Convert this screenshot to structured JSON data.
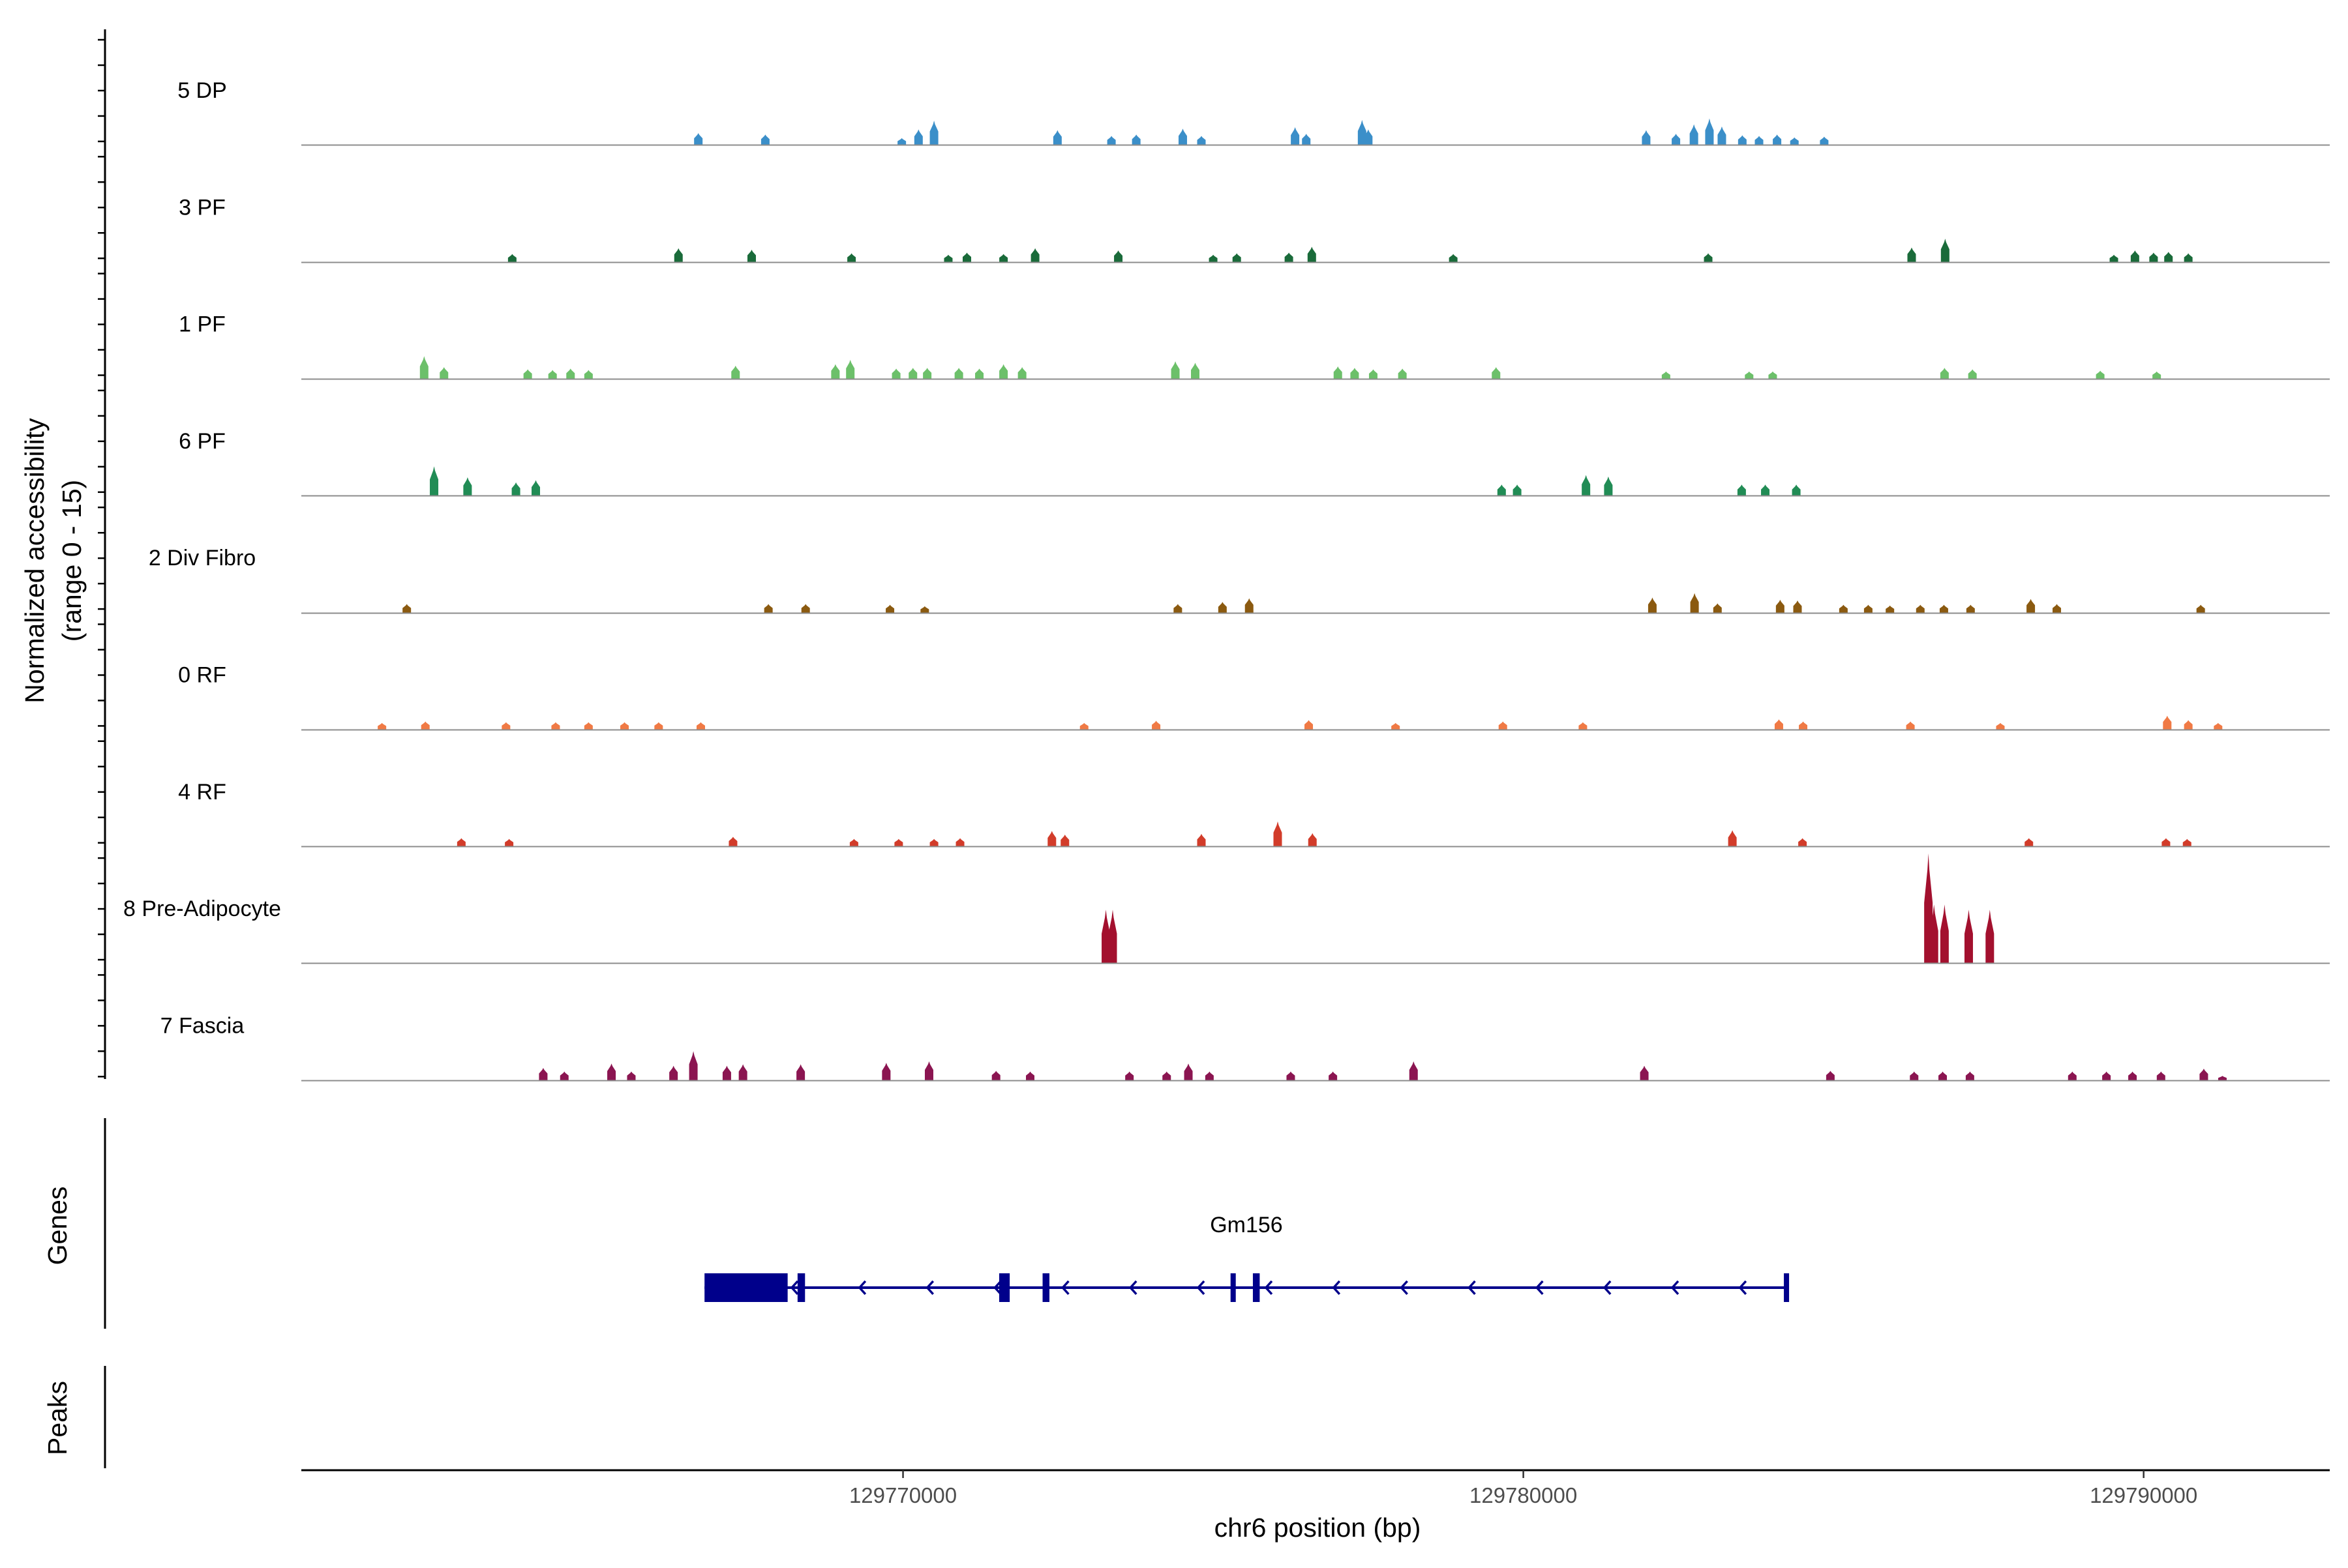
{
  "chart_data": {
    "type": "area",
    "title": "",
    "ylabel_line1": "Normalized accessibility",
    "ylabel_line2": "(range 0 - 15)",
    "y_range": [
      0,
      15
    ],
    "xlabel": "chr6 position (bp)",
    "x_range": [
      129760300,
      129793000
    ],
    "x_ticks": [
      {
        "value": 129770000,
        "label": "129770000"
      },
      {
        "value": 129780000,
        "label": "129780000"
      },
      {
        "value": 129790000,
        "label": "129790000"
      }
    ],
    "tracks": [
      {
        "name": "5 DP",
        "color": "#3b8fc9",
        "peaks": [
          [
            129766700,
            1.6
          ],
          [
            129767780,
            1.4
          ],
          [
            129769980,
            0.9
          ],
          [
            129770250,
            2.1
          ],
          [
            129770500,
            3.3
          ],
          [
            129772490,
            2.0
          ],
          [
            129773360,
            1.2
          ],
          [
            129773760,
            1.4
          ],
          [
            129774510,
            2.2
          ],
          [
            129774810,
            1.2
          ],
          [
            129776320,
            2.4
          ],
          [
            129776500,
            1.5
          ],
          [
            129777400,
            3.4
          ],
          [
            129777500,
            2.1
          ],
          [
            129781980,
            2.0
          ],
          [
            129782460,
            1.5
          ],
          [
            129782750,
            2.8
          ],
          [
            129783000,
            3.6
          ],
          [
            129783200,
            2.5
          ],
          [
            129783530,
            1.3
          ],
          [
            129783800,
            1.2
          ],
          [
            129784090,
            1.4
          ],
          [
            129784370,
            1.0
          ],
          [
            129784850,
            1.1
          ]
        ]
      },
      {
        "name": "3 PF",
        "color": "#1a6b3a",
        "peaks": [
          [
            129763700,
            1.1
          ],
          [
            129766380,
            1.9
          ],
          [
            129767560,
            1.7
          ],
          [
            129769170,
            1.2
          ],
          [
            129770730,
            1.0
          ],
          [
            129771030,
            1.3
          ],
          [
            129771620,
            1.1
          ],
          [
            129772130,
            1.9
          ],
          [
            129773470,
            1.6
          ],
          [
            129775000,
            1.0
          ],
          [
            129775380,
            1.2
          ],
          [
            129776220,
            1.3
          ],
          [
            129776590,
            2.1
          ],
          [
            129778870,
            1.1
          ],
          [
            129782980,
            1.2
          ],
          [
            129786260,
            2.0
          ],
          [
            129786800,
            3.2
          ],
          [
            129789520,
            1.0
          ],
          [
            129789860,
            1.6
          ],
          [
            129790160,
            1.3
          ],
          [
            129790400,
            1.4
          ],
          [
            129790720,
            1.2
          ]
        ]
      },
      {
        "name": "1 PF",
        "color": "#6cc06a",
        "peaks": [
          [
            129762280,
            3.1
          ],
          [
            129762600,
            1.6
          ],
          [
            129763950,
            1.3
          ],
          [
            129764350,
            1.2
          ],
          [
            129764640,
            1.4
          ],
          [
            129764930,
            1.2
          ],
          [
            129767300,
            1.8
          ],
          [
            129768910,
            2.0
          ],
          [
            129769150,
            2.6
          ],
          [
            129769890,
            1.4
          ],
          [
            129770160,
            1.5
          ],
          [
            129770390,
            1.5
          ],
          [
            129770900,
            1.5
          ],
          [
            129771230,
            1.4
          ],
          [
            129771620,
            2.0
          ],
          [
            129771920,
            1.6
          ],
          [
            129774390,
            2.4
          ],
          [
            129774710,
            2.2
          ],
          [
            129777010,
            1.7
          ],
          [
            129777280,
            1.5
          ],
          [
            129777580,
            1.3
          ],
          [
            129778050,
            1.4
          ],
          [
            129779560,
            1.6
          ],
          [
            129782300,
            1.0
          ],
          [
            129783640,
            1.0
          ],
          [
            129784020,
            1.0
          ],
          [
            129786790,
            1.5
          ],
          [
            129787240,
            1.3
          ],
          [
            129789300,
            1.1
          ],
          [
            129790210,
            1.0
          ]
        ]
      },
      {
        "name": "6 PF",
        "color": "#218c55",
        "peaks": [
          [
            129762440,
            4.0
          ],
          [
            129762980,
            2.5
          ],
          [
            129763760,
            1.8
          ],
          [
            129764080,
            2.1
          ],
          [
            129779650,
            1.5
          ],
          [
            129779900,
            1.5
          ],
          [
            129781010,
            2.8
          ],
          [
            129781370,
            2.6
          ],
          [
            129783520,
            1.5
          ],
          [
            129783900,
            1.5
          ],
          [
            129784400,
            1.5
          ]
        ]
      },
      {
        "name": "2 Div Fibro",
        "color": "#8b5a10",
        "peaks": [
          [
            129762000,
            1.2
          ],
          [
            129767830,
            1.2
          ],
          [
            129768430,
            1.2
          ],
          [
            129769790,
            1.1
          ],
          [
            129770350,
            0.9
          ],
          [
            129774430,
            1.2
          ],
          [
            129775150,
            1.5
          ],
          [
            129775580,
            2.0
          ],
          [
            129782080,
            2.1
          ],
          [
            129782760,
            2.7
          ],
          [
            129783130,
            1.3
          ],
          [
            129784140,
            1.8
          ],
          [
            129784420,
            1.7
          ],
          [
            129785160,
            1.1
          ],
          [
            129785560,
            1.1
          ],
          [
            129785910,
            1.0
          ],
          [
            129786400,
            1.1
          ],
          [
            129786780,
            1.1
          ],
          [
            129787210,
            1.1
          ],
          [
            129788180,
            1.9
          ],
          [
            129788600,
            1.2
          ],
          [
            129790920,
            1.1
          ]
        ]
      },
      {
        "name": "0 RF",
        "color": "#f07a45",
        "peaks": [
          [
            129761600,
            0.9
          ],
          [
            129762300,
            1.1
          ],
          [
            129763600,
            1.0
          ],
          [
            129764400,
            1.0
          ],
          [
            129764930,
            1.0
          ],
          [
            129765510,
            1.0
          ],
          [
            129766060,
            1.0
          ],
          [
            129766740,
            1.0
          ],
          [
            129772920,
            0.9
          ],
          [
            129774080,
            1.2
          ],
          [
            129776540,
            1.3
          ],
          [
            129777940,
            0.9
          ],
          [
            129779670,
            1.1
          ],
          [
            129780960,
            1.0
          ],
          [
            129784120,
            1.4
          ],
          [
            129784510,
            1.1
          ],
          [
            129786240,
            1.1
          ],
          [
            129787690,
            0.9
          ],
          [
            129790380,
            1.9
          ],
          [
            129790720,
            1.3
          ],
          [
            129791200,
            0.9
          ]
        ]
      },
      {
        "name": "4 RF",
        "color": "#d23c2a",
        "peaks": [
          [
            129762880,
            1.1
          ],
          [
            129763650,
            1.0
          ],
          [
            129767260,
            1.3
          ],
          [
            129769210,
            1.0
          ],
          [
            129769930,
            1.0
          ],
          [
            129770500,
            1.0
          ],
          [
            129770920,
            1.1
          ],
          [
            129772400,
            2.1
          ],
          [
            129772610,
            1.6
          ],
          [
            129774810,
            1.7
          ],
          [
            129776040,
            3.4
          ],
          [
            129776600,
            1.8
          ],
          [
            129783370,
            2.2
          ],
          [
            129784500,
            1.1
          ],
          [
            129788150,
            1.1
          ],
          [
            129790360,
            1.1
          ],
          [
            129790700,
            1.0
          ]
        ]
      },
      {
        "name": "8 Pre-Adipocyte",
        "color": "#a3102e",
        "peaks": [
          [
            129773270,
            7.3
          ],
          [
            129773380,
            7.3
          ],
          [
            129786530,
            15.0
          ],
          [
            129786620,
            8.0
          ],
          [
            129786790,
            8.0
          ],
          [
            129787180,
            7.3
          ],
          [
            129787520,
            7.3
          ]
        ]
      },
      {
        "name": "7 Fascia",
        "color": "#8b1551",
        "peaks": [
          [
            129764200,
            1.7
          ],
          [
            129764540,
            1.2
          ],
          [
            129765300,
            2.3
          ],
          [
            129765620,
            1.2
          ],
          [
            129766300,
            2.0
          ],
          [
            129766620,
            4.0
          ],
          [
            129767160,
            2.0
          ],
          [
            129767420,
            2.2
          ],
          [
            129768350,
            2.2
          ],
          [
            129769730,
            2.4
          ],
          [
            129770420,
            2.6
          ],
          [
            129771500,
            1.3
          ],
          [
            129772050,
            1.2
          ],
          [
            129773650,
            1.2
          ],
          [
            129774250,
            1.2
          ],
          [
            129774600,
            2.3
          ],
          [
            129774940,
            1.2
          ],
          [
            129776250,
            1.2
          ],
          [
            129776930,
            1.2
          ],
          [
            129778230,
            2.6
          ],
          [
            129781950,
            2.0
          ],
          [
            129784950,
            1.3
          ],
          [
            129786300,
            1.2
          ],
          [
            129786760,
            1.2
          ],
          [
            129787200,
            1.2
          ],
          [
            129788850,
            1.2
          ],
          [
            129789400,
            1.2
          ],
          [
            129789820,
            1.2
          ],
          [
            129790280,
            1.2
          ],
          [
            129790970,
            1.6
          ],
          [
            129791270,
            0.6
          ]
        ]
      }
    ],
    "genes": {
      "label": "Genes",
      "strand": "-",
      "color": "#00008b",
      "transcripts": [
        {
          "name": "Gm156",
          "start": 129766800,
          "end": 129784270,
          "exons": [
            [
              129766800,
              129768140
            ],
            [
              129768300,
              129768420
            ],
            [
              129771550,
              129771720
            ],
            [
              129772250,
              129772360
            ],
            [
              129775280,
              129775360
            ],
            [
              129775640,
              129775750
            ],
            [
              129784200,
              129784270
            ]
          ]
        }
      ]
    },
    "peaks_track": {
      "label": "Peaks",
      "regions": []
    }
  }
}
